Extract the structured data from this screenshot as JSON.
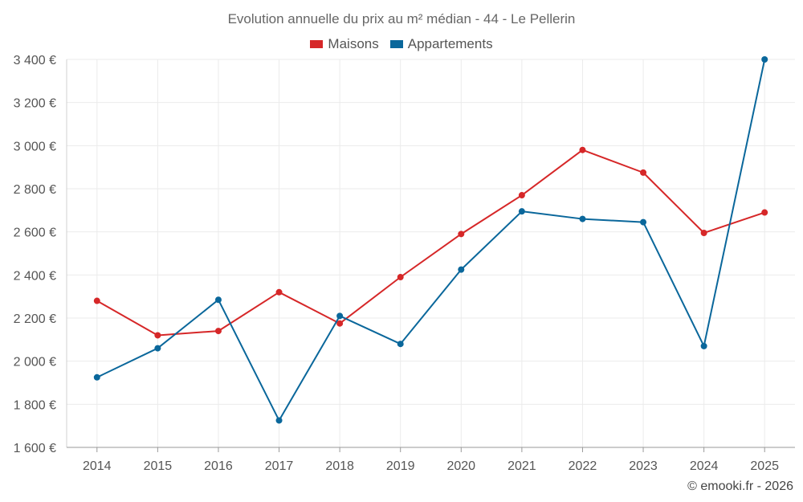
{
  "chart_data": {
    "type": "line",
    "title": "Evolution annuelle du prix au m² médian - 44 - Le Pellerin",
    "categories": [
      "2014",
      "2015",
      "2016",
      "2017",
      "2018",
      "2019",
      "2020",
      "2021",
      "2022",
      "2023",
      "2024",
      "2025"
    ],
    "series": [
      {
        "name": "Maisons",
        "color": "#d62728",
        "values": [
          2280,
          2120,
          2140,
          2320,
          2175,
          2390,
          2590,
          2770,
          2980,
          2875,
          2595,
          2690
        ]
      },
      {
        "name": "Appartements",
        "color": "#0a679b",
        "values": [
          1925,
          2060,
          2285,
          1725,
          2210,
          2080,
          2425,
          2695,
          2660,
          2645,
          2070,
          3400
        ]
      }
    ],
    "ylim": [
      1600,
      3400
    ],
    "yticks": [
      1600,
      1800,
      2000,
      2200,
      2400,
      2600,
      2800,
      3000,
      3200,
      3400
    ],
    "ytick_labels": [
      "1 600 €",
      "1 800 €",
      "2 000 €",
      "2 200 €",
      "2 400 €",
      "2 600 €",
      "2 800 €",
      "3 000 €",
      "3 200 €",
      "3 400 €"
    ],
    "grid": true,
    "legend_position": "top-center",
    "xlabel": "",
    "ylabel": ""
  },
  "credit": "© emooki.fr - 2026"
}
